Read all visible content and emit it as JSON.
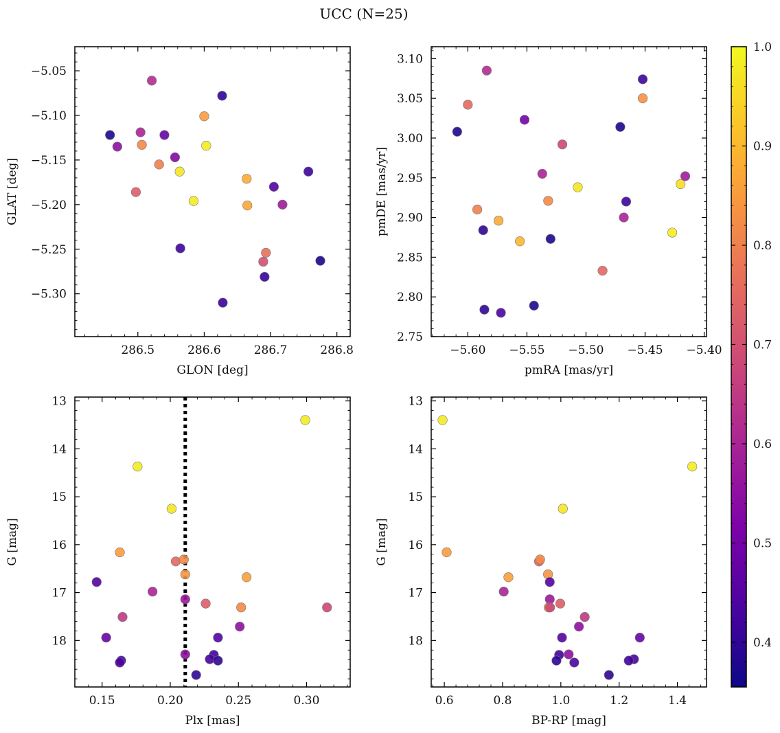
{
  "title": "UCC (N=25)",
  "colorbar": {
    "min": 0.355,
    "max": 1.0,
    "ticks": [
      0.4,
      0.5,
      0.6,
      0.7,
      0.8,
      0.9,
      1.0
    ],
    "tick_labels": [
      "0.4",
      "0.5",
      "0.6",
      "0.7",
      "0.8",
      "0.9",
      "1.0"
    ],
    "colormap": "plasma"
  },
  "chart_data": [
    {
      "type": "scatter",
      "id": "glon-glat",
      "xlabel": "GLON [deg]",
      "ylabel": "GLAT [deg]",
      "xlim": [
        286.405,
        286.82
      ],
      "ylim": [
        -5.348,
        -5.023
      ],
      "xticks": [
        286.5,
        286.6,
        286.7,
        286.8
      ],
      "xtick_labels": [
        "286.5",
        "286.6",
        "286.7",
        "286.8"
      ],
      "yticks": [
        -5.05,
        -5.1,
        -5.15,
        -5.2,
        -5.25,
        -5.3
      ],
      "ytick_labels": [
        "−5.05",
        "−5.10",
        "−5.15",
        "−5.20",
        "−5.25",
        "−5.30"
      ],
      "invert_y": false,
      "points": [
        {
          "x": 286.458,
          "y": -5.122,
          "c": 0.38
        },
        {
          "x": 286.469,
          "y": -5.135,
          "c": 0.55
        },
        {
          "x": 286.497,
          "y": -5.186,
          "c": 0.73
        },
        {
          "x": 286.504,
          "y": -5.119,
          "c": 0.6
        },
        {
          "x": 286.506,
          "y": -5.133,
          "c": 0.82
        },
        {
          "x": 286.521,
          "y": -5.061,
          "c": 0.62
        },
        {
          "x": 286.532,
          "y": -5.155,
          "c": 0.8
        },
        {
          "x": 286.54,
          "y": -5.122,
          "c": 0.48
        },
        {
          "x": 286.556,
          "y": -5.147,
          "c": 0.53
        },
        {
          "x": 286.563,
          "y": -5.163,
          "c": 0.97
        },
        {
          "x": 286.564,
          "y": -5.249,
          "c": 0.42
        },
        {
          "x": 286.584,
          "y": -5.196,
          "c": 0.98
        },
        {
          "x": 286.6,
          "y": -5.101,
          "c": 0.85
        },
        {
          "x": 286.603,
          "y": -5.134,
          "c": 0.98
        },
        {
          "x": 286.627,
          "y": -5.078,
          "c": 0.4
        },
        {
          "x": 286.628,
          "y": -5.31,
          "c": 0.41
        },
        {
          "x": 286.664,
          "y": -5.171,
          "c": 0.88
        },
        {
          "x": 286.665,
          "y": -5.201,
          "c": 0.87
        },
        {
          "x": 286.689,
          "y": -5.264,
          "c": 0.7
        },
        {
          "x": 286.691,
          "y": -5.281,
          "c": 0.41
        },
        {
          "x": 286.693,
          "y": -5.254,
          "c": 0.77
        },
        {
          "x": 286.705,
          "y": -5.18,
          "c": 0.45
        },
        {
          "x": 286.718,
          "y": -5.2,
          "c": 0.58
        },
        {
          "x": 286.757,
          "y": -5.163,
          "c": 0.42
        },
        {
          "x": 286.775,
          "y": -5.263,
          "c": 0.37
        }
      ]
    },
    {
      "type": "scatter",
      "id": "pmra-pmde",
      "xlabel": "pmRA [mas/yr]",
      "ylabel": "pmDE [mas/yr]",
      "xlim": [
        -5.631,
        -5.398
      ],
      "ylim": [
        2.75,
        3.115
      ],
      "xticks": [
        -5.6,
        -5.55,
        -5.5,
        -5.45,
        -5.4
      ],
      "xtick_labels": [
        "−5.60",
        "−5.55",
        "−5.50",
        "−5.45",
        "−5.40"
      ],
      "yticks": [
        2.75,
        2.8,
        2.85,
        2.9,
        2.95,
        3.0,
        3.05,
        3.1
      ],
      "ytick_labels": [
        "2.75",
        "2.80",
        "2.85",
        "2.90",
        "2.95",
        "3.00",
        "3.05",
        "3.10"
      ],
      "invert_y": false,
      "points": [
        {
          "x": -5.609,
          "y": 3.008,
          "c": 0.38
        },
        {
          "x": -5.6,
          "y": 3.042,
          "c": 0.75
        },
        {
          "x": -5.592,
          "y": 2.91,
          "c": 0.8
        },
        {
          "x": -5.587,
          "y": 2.884,
          "c": 0.4
        },
        {
          "x": -5.586,
          "y": 2.784,
          "c": 0.4
        },
        {
          "x": -5.584,
          "y": 3.085,
          "c": 0.62
        },
        {
          "x": -5.574,
          "y": 2.896,
          "c": 0.88
        },
        {
          "x": -5.572,
          "y": 2.78,
          "c": 0.44
        },
        {
          "x": -5.556,
          "y": 2.87,
          "c": 0.9
        },
        {
          "x": -5.552,
          "y": 3.023,
          "c": 0.5
        },
        {
          "x": -5.544,
          "y": 2.789,
          "c": 0.38
        },
        {
          "x": -5.537,
          "y": 2.955,
          "c": 0.6
        },
        {
          "x": -5.532,
          "y": 2.921,
          "c": 0.82
        },
        {
          "x": -5.53,
          "y": 2.873,
          "c": 0.38
        },
        {
          "x": -5.52,
          "y": 2.992,
          "c": 0.68
        },
        {
          "x": -5.507,
          "y": 2.938,
          "c": 0.97
        },
        {
          "x": -5.486,
          "y": 2.833,
          "c": 0.75
        },
        {
          "x": -5.471,
          "y": 3.014,
          "c": 0.38
        },
        {
          "x": -5.468,
          "y": 2.9,
          "c": 0.6
        },
        {
          "x": -5.466,
          "y": 2.92,
          "c": 0.42
        },
        {
          "x": -5.452,
          "y": 3.074,
          "c": 0.42
        },
        {
          "x": -5.452,
          "y": 3.05,
          "c": 0.83
        },
        {
          "x": -5.427,
          "y": 2.881,
          "c": 0.98
        },
        {
          "x": -5.42,
          "y": 2.942,
          "c": 0.96
        },
        {
          "x": -5.416,
          "y": 2.952,
          "c": 0.58
        }
      ]
    },
    {
      "type": "scatter",
      "id": "plx-g",
      "xlabel": "Plx [mas]",
      "ylabel": "G [mag]",
      "xlim": [
        0.13,
        0.332
      ],
      "ylim": [
        18.97,
        12.92
      ],
      "xticks": [
        0.15,
        0.2,
        0.25,
        0.3
      ],
      "xtick_labels": [
        "0.15",
        "0.20",
        "0.25",
        "0.30"
      ],
      "yticks": [
        13,
        14,
        15,
        16,
        17,
        18
      ],
      "ytick_labels": [
        "13",
        "14",
        "15",
        "16",
        "17",
        "18"
      ],
      "invert_y": true,
      "vline": {
        "x": 0.211,
        "style": "dotted"
      },
      "points": [
        {
          "x": 0.299,
          "y": 13.4,
          "c": 0.98
        },
        {
          "x": 0.176,
          "y": 14.37,
          "c": 0.98
        },
        {
          "x": 0.201,
          "y": 15.25,
          "c": 0.97
        },
        {
          "x": 0.163,
          "y": 16.16,
          "c": 0.85
        },
        {
          "x": 0.204,
          "y": 16.35,
          "c": 0.75
        },
        {
          "x": 0.21,
          "y": 16.31,
          "c": 0.82
        },
        {
          "x": 0.211,
          "y": 16.62,
          "c": 0.84
        },
        {
          "x": 0.256,
          "y": 16.68,
          "c": 0.86
        },
        {
          "x": 0.146,
          "y": 16.78,
          "c": 0.45
        },
        {
          "x": 0.187,
          "y": 16.98,
          "c": 0.6
        },
        {
          "x": 0.211,
          "y": 17.14,
          "c": 0.57
        },
        {
          "x": 0.226,
          "y": 17.23,
          "c": 0.73
        },
        {
          "x": 0.252,
          "y": 17.31,
          "c": 0.82
        },
        {
          "x": 0.315,
          "y": 17.31,
          "c": 0.68
        },
        {
          "x": 0.165,
          "y": 17.51,
          "c": 0.65
        },
        {
          "x": 0.251,
          "y": 17.71,
          "c": 0.55
        },
        {
          "x": 0.153,
          "y": 17.94,
          "c": 0.48
        },
        {
          "x": 0.235,
          "y": 17.94,
          "c": 0.45
        },
        {
          "x": 0.211,
          "y": 18.29,
          "c": 0.55
        },
        {
          "x": 0.232,
          "y": 18.3,
          "c": 0.42
        },
        {
          "x": 0.229,
          "y": 18.39,
          "c": 0.43
        },
        {
          "x": 0.235,
          "y": 18.42,
          "c": 0.4
        },
        {
          "x": 0.164,
          "y": 18.42,
          "c": 0.42
        },
        {
          "x": 0.163,
          "y": 18.46,
          "c": 0.44
        },
        {
          "x": 0.219,
          "y": 18.72,
          "c": 0.4
        }
      ]
    },
    {
      "type": "scatter",
      "id": "bprp-g",
      "xlabel": "BP-RP [mag]",
      "ylabel": "G [mag]",
      "xlim": [
        0.555,
        1.5
      ],
      "ylim": [
        18.97,
        12.92
      ],
      "xticks": [
        0.6,
        0.8,
        1.0,
        1.2,
        1.4
      ],
      "xtick_labels": [
        "0.6",
        "0.8",
        "1.0",
        "1.2",
        "1.4"
      ],
      "yticks": [
        13,
        14,
        15,
        16,
        17,
        18
      ],
      "ytick_labels": [
        "13",
        "14",
        "15",
        "16",
        "17",
        "18"
      ],
      "invert_y": true,
      "points": [
        {
          "x": 0.594,
          "y": 13.4,
          "c": 0.98
        },
        {
          "x": 1.451,
          "y": 14.37,
          "c": 0.98
        },
        {
          "x": 1.007,
          "y": 15.25,
          "c": 0.97
        },
        {
          "x": 0.608,
          "y": 16.16,
          "c": 0.85
        },
        {
          "x": 0.925,
          "y": 16.35,
          "c": 0.75
        },
        {
          "x": 0.929,
          "y": 16.31,
          "c": 0.82
        },
        {
          "x": 0.956,
          "y": 16.62,
          "c": 0.84
        },
        {
          "x": 0.82,
          "y": 16.68,
          "c": 0.86
        },
        {
          "x": 0.962,
          "y": 16.78,
          "c": 0.45
        },
        {
          "x": 0.804,
          "y": 16.98,
          "c": 0.6
        },
        {
          "x": 0.962,
          "y": 17.14,
          "c": 0.57
        },
        {
          "x": 0.998,
          "y": 17.23,
          "c": 0.73
        },
        {
          "x": 0.958,
          "y": 17.31,
          "c": 0.82
        },
        {
          "x": 0.963,
          "y": 17.31,
          "c": 0.68
        },
        {
          "x": 1.082,
          "y": 17.51,
          "c": 0.65
        },
        {
          "x": 1.062,
          "y": 17.71,
          "c": 0.55
        },
        {
          "x": 1.271,
          "y": 17.94,
          "c": 0.48
        },
        {
          "x": 1.004,
          "y": 17.94,
          "c": 0.45
        },
        {
          "x": 1.027,
          "y": 18.29,
          "c": 0.55
        },
        {
          "x": 0.994,
          "y": 18.3,
          "c": 0.42
        },
        {
          "x": 1.251,
          "y": 18.39,
          "c": 0.43
        },
        {
          "x": 0.985,
          "y": 18.42,
          "c": 0.4
        },
        {
          "x": 1.233,
          "y": 18.42,
          "c": 0.42
        },
        {
          "x": 1.046,
          "y": 18.46,
          "c": 0.44
        },
        {
          "x": 1.165,
          "y": 18.72,
          "c": 0.4
        }
      ]
    }
  ]
}
